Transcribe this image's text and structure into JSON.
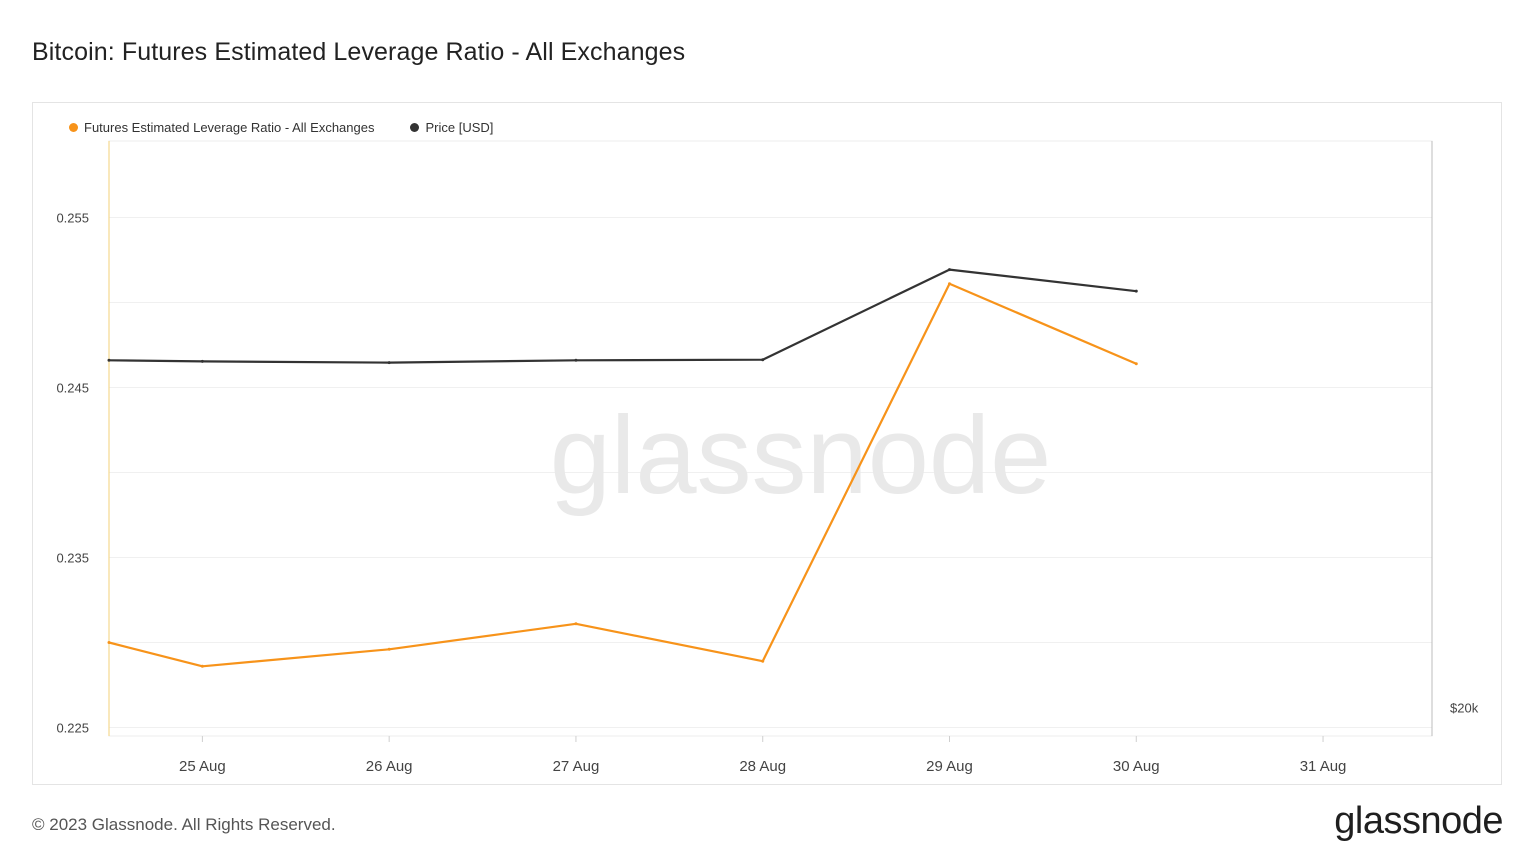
{
  "title": "Bitcoin: Futures Estimated Leverage Ratio - All Exchanges",
  "footer": {
    "copyright": "© 2023 Glassnode. All Rights Reserved.",
    "logo": "glassnode"
  },
  "watermark": "glassnode",
  "chart_data": {
    "type": "line",
    "title": "Bitcoin: Futures Estimated Leverage Ratio - All Exchanges",
    "x": [
      "2023-08-24T12:00",
      "2023-08-25",
      "2023-08-26",
      "2023-08-27",
      "2023-08-28",
      "2023-08-29",
      "2023-08-30"
    ],
    "xticks": [
      "25 Aug",
      "26 Aug",
      "27 Aug",
      "28 Aug",
      "29 Aug",
      "30 Aug",
      "31 Aug"
    ],
    "xlim": [
      "2023-08-24T12:00",
      "2023-08-31T14:00"
    ],
    "y_left": {
      "ticks": [
        "0.255",
        "0.245",
        "0.235",
        "0.225"
      ],
      "ylim": [
        0.2245,
        0.2595
      ]
    },
    "y_right": {
      "ticks": [
        "$20k"
      ],
      "ylim": [
        19500,
        30000
      ]
    },
    "grid": true,
    "legend_position": "top-left",
    "series": [
      {
        "name": "Futures Estimated Leverage Ratio - All Exchanges",
        "axis": "left",
        "color": "#f7931a",
        "values": [
          0.23,
          0.2286,
          0.2296,
          0.2311,
          0.2289,
          0.2511,
          0.2464
        ]
      },
      {
        "name": "Price [USD]",
        "axis": "right",
        "color": "#333333",
        "values": [
          26130,
          26110,
          26090,
          26130,
          26140,
          27730,
          27350
        ]
      }
    ]
  }
}
